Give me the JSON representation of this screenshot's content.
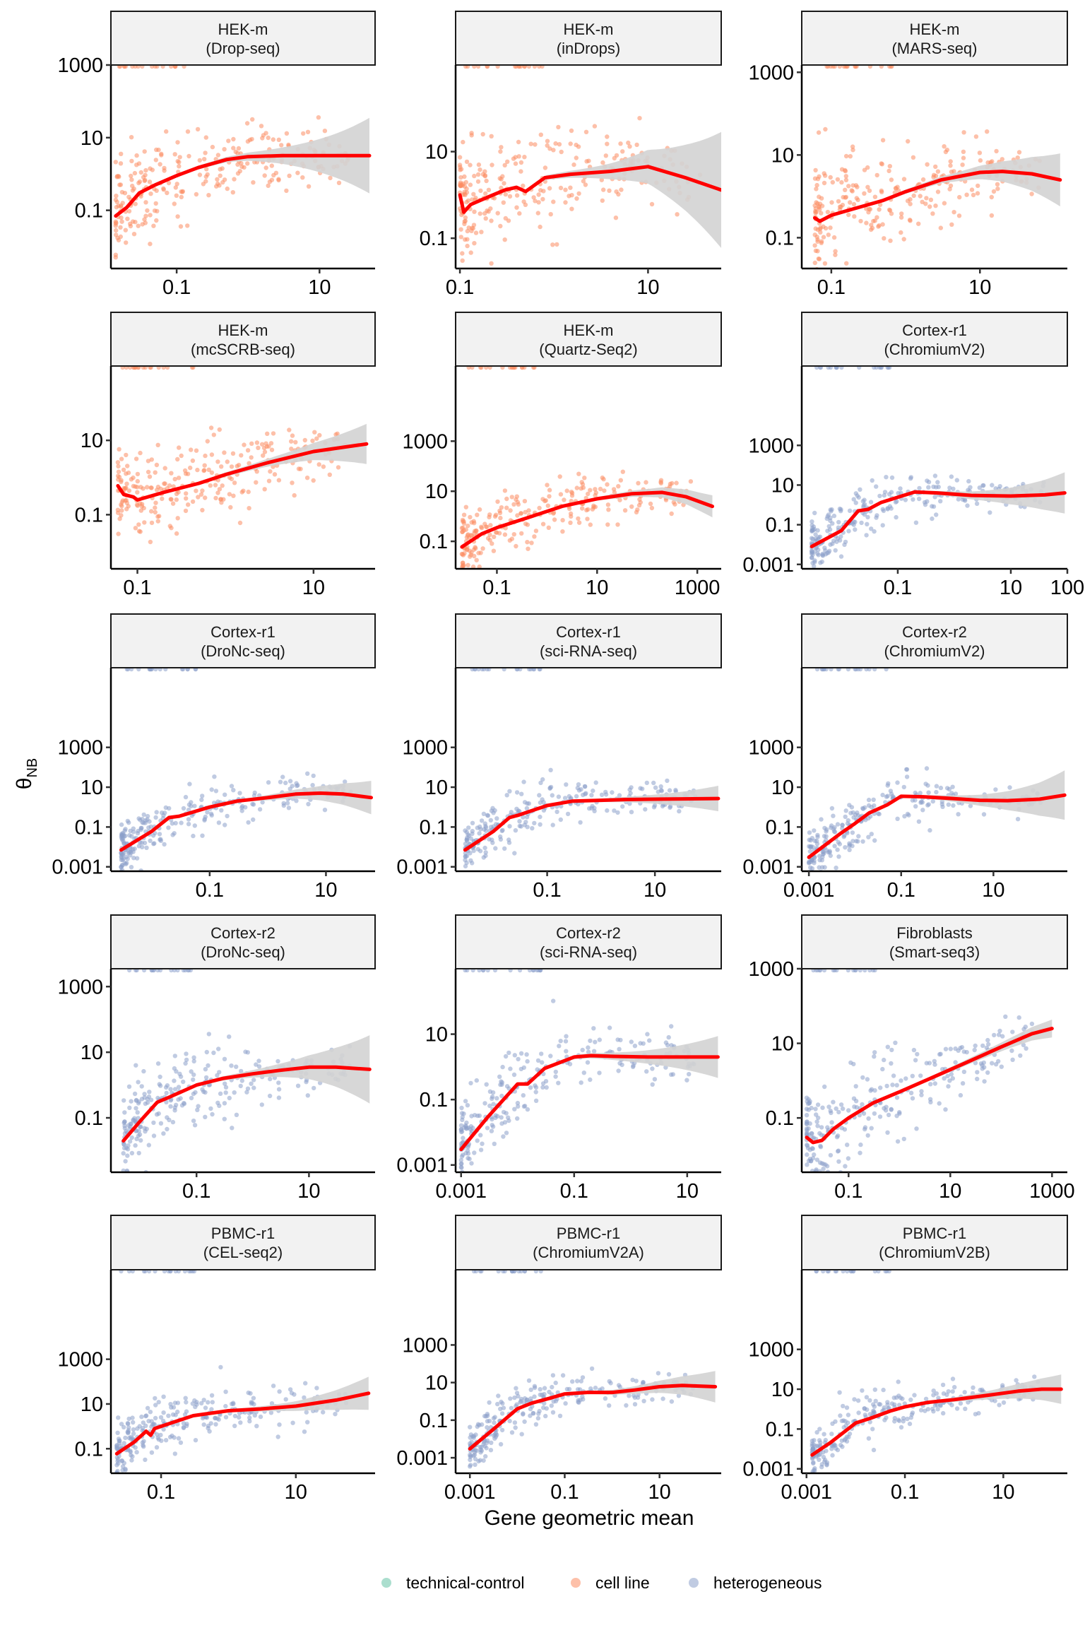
{
  "chart_data": {
    "type": "scatter",
    "title": "",
    "xlabel": "Gene geometric mean",
    "ylabel": "θ",
    "ylabel_subscript": "NB",
    "x_scale": "log10",
    "y_scale": "log10",
    "grid": false,
    "legend": {
      "placement": "bottom",
      "entries": [
        {
          "name": "technical-control",
          "color": "#66C2A5"
        },
        {
          "name": "cell line",
          "color": "#FC8D62"
        },
        {
          "name": "heterogeneous",
          "color": "#8DA0CB"
        }
      ]
    },
    "trend_color": "#FF0000",
    "ribbon_color": "#D3D3D3",
    "panels": [
      {
        "dataset": "HEK-m",
        "protocol": "(Drop-seq)",
        "group": "cell line",
        "xlim": [
          0.012,
          60
        ],
        "ylim": [
          0.0025,
          1000
        ],
        "xticks": [
          {
            "v": 0.1,
            "label": "0.1"
          },
          {
            "v": 10,
            "label": "10"
          }
        ],
        "yticks": [
          {
            "v": 0.1,
            "label": "0.1"
          },
          {
            "v": 10,
            "label": "10"
          },
          {
            "v": 1000,
            "label": "1000"
          }
        ],
        "trend": {
          "x": [
            0.014,
            0.02,
            0.03,
            0.05,
            0.1,
            0.2,
            0.5,
            1,
            3,
            10,
            50
          ],
          "y": [
            0.07,
            0.12,
            0.3,
            0.5,
            0.9,
            1.5,
            2.5,
            3,
            3.2,
            3.2,
            3.2
          ]
        },
        "ribbon_half_width_end": 1.0
      },
      {
        "dataset": "HEK-m",
        "protocol": "(inDrops)",
        "group": "cell line",
        "xlim": [
          0.09,
          60
        ],
        "ylim": [
          0.02,
          1000
        ],
        "xticks": [
          {
            "v": 0.1,
            "label": "0.1"
          },
          {
            "v": 10,
            "label": "10"
          }
        ],
        "yticks": [
          {
            "v": 0.1,
            "label": "0.1"
          },
          {
            "v": 10,
            "label": "10"
          }
        ],
        "trend": {
          "x": [
            0.1,
            0.11,
            0.13,
            0.2,
            0.3,
            0.4,
            0.5,
            0.8,
            1.5,
            4,
            10,
            25,
            60
          ],
          "y": [
            1,
            0.4,
            0.6,
            0.9,
            1.3,
            1.5,
            1.2,
            2.5,
            3,
            3.5,
            4.5,
            2.5,
            1.3
          ]
        },
        "ribbon_half_width_end": 1.3
      },
      {
        "dataset": "HEK-m",
        "protocol": "(MARS-seq)",
        "group": "cell line",
        "xlim": [
          0.04,
          150
        ],
        "ylim": [
          0.018,
          1500
        ],
        "xticks": [
          {
            "v": 0.1,
            "label": "0.1"
          },
          {
            "v": 10,
            "label": "10"
          }
        ],
        "yticks": [
          {
            "v": 0.1,
            "label": "0.1"
          },
          {
            "v": 10,
            "label": "10"
          },
          {
            "v": 1000,
            "label": "1000"
          }
        ],
        "trend": {
          "x": [
            0.06,
            0.07,
            0.1,
            0.2,
            0.5,
            1,
            3,
            10,
            20,
            50,
            120
          ],
          "y": [
            0.3,
            0.25,
            0.35,
            0.5,
            0.8,
            1.3,
            2.5,
            3.8,
            4,
            3.5,
            2.5
          ]
        },
        "ribbon_half_width_end": 0.6
      },
      {
        "dataset": "HEK-m",
        "protocol": "(mcSCRB-seq)",
        "group": "cell line",
        "xlim": [
          0.05,
          50
        ],
        "ylim": [
          0.0035,
          1000
        ],
        "xticks": [
          {
            "v": 0.1,
            "label": "0.1"
          },
          {
            "v": 10,
            "label": "10"
          }
        ],
        "yticks": [
          {
            "v": 0.1,
            "label": "0.1"
          },
          {
            "v": 10,
            "label": "10"
          }
        ],
        "trend": {
          "x": [
            0.06,
            0.07,
            0.09,
            0.1,
            0.2,
            0.5,
            1,
            3,
            10,
            40
          ],
          "y": [
            0.6,
            0.35,
            0.3,
            0.25,
            0.4,
            0.7,
            1.2,
            2.5,
            5,
            8
          ]
        },
        "ribbon_half_width_end": 0.5
      },
      {
        "dataset": "HEK-m",
        "protocol": "(Quartz-Seq2)",
        "group": "cell line",
        "xlim": [
          0.015,
          3000
        ],
        "ylim": [
          0.008,
          1000000
        ],
        "xticks": [
          {
            "v": 0.1,
            "label": "0.1"
          },
          {
            "v": 10,
            "label": "10"
          },
          {
            "v": 1000,
            "label": "1000"
          }
        ],
        "yticks": [
          {
            "v": 0.1,
            "label": "0.1"
          },
          {
            "v": 10,
            "label": "10"
          },
          {
            "v": 1000,
            "label": "1000"
          }
        ],
        "trend": {
          "x": [
            0.02,
            0.05,
            0.1,
            0.5,
            2,
            10,
            50,
            200,
            600,
            2000
          ],
          "y": [
            0.06,
            0.2,
            0.35,
            1,
            2.5,
            5,
            8,
            9,
            6,
            2.5
          ]
        },
        "ribbon_half_width_end": 0.4
      },
      {
        "dataset": "Cortex-r1",
        "protocol": "(ChromiumV2)",
        "group": "heterogeneous",
        "xlim": [
          0.002,
          100
        ],
        "ylim": [
          0.0006,
          10000000
        ],
        "xticks": [
          {
            "v": 0.1,
            "label": "0.1"
          },
          {
            "v": 10,
            "label": "10"
          },
          {
            "v": 100,
            "label": "100"
          }
        ],
        "yticks": [
          {
            "v": 0.001,
            "label": "0.001"
          },
          {
            "v": 0.1,
            "label": "0.1"
          },
          {
            "v": 10,
            "label": "10"
          },
          {
            "v": 1000,
            "label": "1000"
          }
        ],
        "trend": {
          "x": [
            0.003,
            0.01,
            0.02,
            0.03,
            0.05,
            0.2,
            0.5,
            2,
            10,
            40,
            90
          ],
          "y": [
            0.008,
            0.05,
            0.5,
            0.6,
            1.3,
            4.5,
            4,
            3,
            2.8,
            3.2,
            4
          ]
        },
        "ribbon_half_width_end": 1.0
      },
      {
        "dataset": "Cortex-r1",
        "protocol": "(DroNc-seq)",
        "group": "heterogeneous",
        "xlim": [
          0.002,
          70
        ],
        "ylim": [
          0.0006,
          10000000
        ],
        "xticks": [
          {
            "v": 0.1,
            "label": "0.1"
          },
          {
            "v": 10,
            "label": "10"
          }
        ],
        "yticks": [
          {
            "v": 0.001,
            "label": "0.001"
          },
          {
            "v": 0.1,
            "label": "0.1"
          },
          {
            "v": 10,
            "label": "10"
          },
          {
            "v": 1000,
            "label": "1000"
          }
        ],
        "trend": {
          "x": [
            0.003,
            0.01,
            0.02,
            0.03,
            0.1,
            0.3,
            1,
            3,
            8,
            20,
            60
          ],
          "y": [
            0.007,
            0.06,
            0.3,
            0.35,
            1,
            2,
            3,
            4.5,
            5,
            4.5,
            3
          ]
        },
        "ribbon_half_width_end": 0.8
      },
      {
        "dataset": "Cortex-r1",
        "protocol": "(sci-RNA-seq)",
        "group": "heterogeneous",
        "xlim": [
          0.002,
          170
        ],
        "ylim": [
          0.0006,
          10000000
        ],
        "xticks": [
          {
            "v": 0.1,
            "label": "0.1"
          },
          {
            "v": 10,
            "label": "10"
          }
        ],
        "yticks": [
          {
            "v": 0.001,
            "label": "0.001"
          },
          {
            "v": 0.1,
            "label": "0.1"
          },
          {
            "v": 10,
            "label": "10"
          },
          {
            "v": 1000,
            "label": "1000"
          }
        ],
        "trend": {
          "x": [
            0.003,
            0.01,
            0.02,
            0.03,
            0.1,
            0.3,
            1,
            3,
            10,
            50,
            150
          ],
          "y": [
            0.007,
            0.06,
            0.3,
            0.4,
            1.2,
            2,
            2.2,
            2.4,
            2.5,
            2.6,
            2.7
          ]
        },
        "ribbon_half_width_end": 0.6
      },
      {
        "dataset": "Cortex-r2",
        "protocol": "(ChromiumV2)",
        "group": "heterogeneous",
        "xlim": [
          0.0007,
          400
        ],
        "ylim": [
          0.0006,
          10000000
        ],
        "xticks": [
          {
            "v": 0.001,
            "label": "0.001"
          },
          {
            "v": 0.1,
            "label": "0.1"
          },
          {
            "v": 10,
            "label": "10"
          }
        ],
        "yticks": [
          {
            "v": 0.001,
            "label": "0.001"
          },
          {
            "v": 0.1,
            "label": "0.1"
          },
          {
            "v": 10,
            "label": "10"
          },
          {
            "v": 1000,
            "label": "1000"
          }
        ],
        "trend": {
          "x": [
            0.001,
            0.005,
            0.01,
            0.02,
            0.05,
            0.1,
            0.3,
            1,
            5,
            20,
            100,
            350
          ],
          "y": [
            0.003,
            0.05,
            0.15,
            0.5,
            1.3,
            3.5,
            3.3,
            2.8,
            2.2,
            2.1,
            2.5,
            4
          ]
        },
        "ribbon_half_width_end": 1.2
      },
      {
        "dataset": "Cortex-r2",
        "protocol": "(DroNc-seq)",
        "group": "heterogeneous",
        "xlim": [
          0.003,
          150
        ],
        "ylim": [
          0.0022,
          3500
        ],
        "xticks": [
          {
            "v": 0.1,
            "label": "0.1"
          },
          {
            "v": 10,
            "label": "10"
          }
        ],
        "yticks": [
          {
            "v": 0.1,
            "label": "0.1"
          },
          {
            "v": 10,
            "label": "10"
          },
          {
            "v": 1000,
            "label": "1000"
          }
        ],
        "trend": {
          "x": [
            0.005,
            0.01,
            0.02,
            0.03,
            0.1,
            0.3,
            1,
            3,
            10,
            30,
            120
          ],
          "y": [
            0.02,
            0.08,
            0.3,
            0.4,
            1,
            1.6,
            2.2,
            2.8,
            3.5,
            3.5,
            3
          ]
        },
        "ribbon_half_width_end": 1.0
      },
      {
        "dataset": "Cortex-r2",
        "protocol": "(sci-RNA-seq)",
        "group": "heterogeneous",
        "xlim": [
          0.0008,
          40
        ],
        "ylim": [
          0.0006,
          1000
        ],
        "xticks": [
          {
            "v": 0.001,
            "label": "0.001"
          },
          {
            "v": 0.1,
            "label": "0.1"
          },
          {
            "v": 10,
            "label": "10"
          }
        ],
        "yticks": [
          {
            "v": 0.001,
            "label": "0.001"
          },
          {
            "v": 0.1,
            "label": "0.1"
          },
          {
            "v": 10,
            "label": "10"
          }
        ],
        "trend": {
          "x": [
            0.001,
            0.003,
            0.01,
            0.015,
            0.03,
            0.1,
            0.2,
            0.5,
            2,
            10,
            35
          ],
          "y": [
            0.003,
            0.03,
            0.3,
            0.3,
            0.9,
            2,
            2.2,
            2.1,
            2,
            2,
            2
          ]
        },
        "ribbon_half_width_end": 0.6
      },
      {
        "dataset": "Fibroblasts",
        "protocol": "(Smart-seq3)",
        "group": "heterogeneous",
        "xlim": [
          0.012,
          2000
        ],
        "ylim": [
          0.0035,
          1000
        ],
        "xticks": [
          {
            "v": 0.1,
            "label": "0.1"
          },
          {
            "v": 10,
            "label": "10"
          },
          {
            "v": 1000,
            "label": "1000"
          }
        ],
        "yticks": [
          {
            "v": 0.1,
            "label": "0.1"
          },
          {
            "v": 10,
            "label": "10"
          },
          {
            "v": 1000,
            "label": "1000"
          }
        ],
        "trend": {
          "x": [
            0.015,
            0.02,
            0.03,
            0.05,
            0.1,
            0.3,
            1,
            5,
            20,
            100,
            400,
            1000
          ],
          "y": [
            0.03,
            0.022,
            0.025,
            0.05,
            0.1,
            0.25,
            0.5,
            1.3,
            3,
            8,
            18,
            25
          ]
        },
        "ribbon_half_width_end": 0.2
      },
      {
        "dataset": "PBMC-r1",
        "protocol": "(CEL-seq2)",
        "group": "heterogeneous",
        "xlim": [
          0.018,
          150
        ],
        "ylim": [
          0.008,
          10000000
        ],
        "xticks": [
          {
            "v": 0.1,
            "label": "0.1"
          },
          {
            "v": 10,
            "label": "10"
          }
        ],
        "yticks": [
          {
            "v": 0.1,
            "label": "0.1"
          },
          {
            "v": 10,
            "label": "10"
          },
          {
            "v": 1000,
            "label": "1000"
          }
        ],
        "trend": {
          "x": [
            0.022,
            0.04,
            0.06,
            0.07,
            0.08,
            0.1,
            0.15,
            0.3,
            1,
            3,
            10,
            40,
            120
          ],
          "y": [
            0.06,
            0.2,
            0.6,
            0.4,
            0.8,
            1,
            1.5,
            3,
            5,
            6,
            8,
            15,
            30
          ]
        },
        "ribbon_half_width_end": 0.7
      },
      {
        "dataset": "PBMC-r1",
        "protocol": "(ChromiumV2A)",
        "group": "heterogeneous",
        "xlim": [
          0.0005,
          200
        ],
        "ylim": [
          0.00015,
          10000000
        ],
        "xticks": [
          {
            "v": 0.001,
            "label": "0.001"
          },
          {
            "v": 0.1,
            "label": "0.1"
          },
          {
            "v": 10,
            "label": "10"
          }
        ],
        "yticks": [
          {
            "v": 0.001,
            "label": "0.001"
          },
          {
            "v": 0.1,
            "label": "0.1"
          },
          {
            "v": 10,
            "label": "10"
          },
          {
            "v": 1000,
            "label": "1000"
          }
        ],
        "trend": {
          "x": [
            0.001,
            0.003,
            0.01,
            0.02,
            0.05,
            0.1,
            0.3,
            1,
            3,
            10,
            30,
            150
          ],
          "y": [
            0.003,
            0.03,
            0.4,
            0.8,
            1.5,
            2.5,
            3,
            3,
            4,
            6,
            7,
            6
          ]
        },
        "ribbon_half_width_end": 0.8
      },
      {
        "dataset": "PBMC-r1",
        "protocol": "(ChromiumV2B)",
        "group": "heterogeneous",
        "xlim": [
          0.0008,
          200
        ],
        "ylim": [
          0.0006,
          10000000
        ],
        "xticks": [
          {
            "v": 0.001,
            "label": "0.001"
          },
          {
            "v": 0.1,
            "label": "0.1"
          },
          {
            "v": 10,
            "label": "10"
          }
        ],
        "yticks": [
          {
            "v": 0.001,
            "label": "0.001"
          },
          {
            "v": 0.1,
            "label": "0.1"
          },
          {
            "v": 10,
            "label": "10"
          },
          {
            "v": 1000,
            "label": "1000"
          }
        ],
        "trend": {
          "x": [
            0.0013,
            0.003,
            0.01,
            0.02,
            0.05,
            0.1,
            0.3,
            1,
            5,
            20,
            60,
            150
          ],
          "y": [
            0.005,
            0.02,
            0.2,
            0.35,
            0.8,
            1.3,
            2.2,
            3,
            5,
            8,
            10,
            10
          ]
        },
        "ribbon_half_width_end": 0.7
      }
    ]
  }
}
